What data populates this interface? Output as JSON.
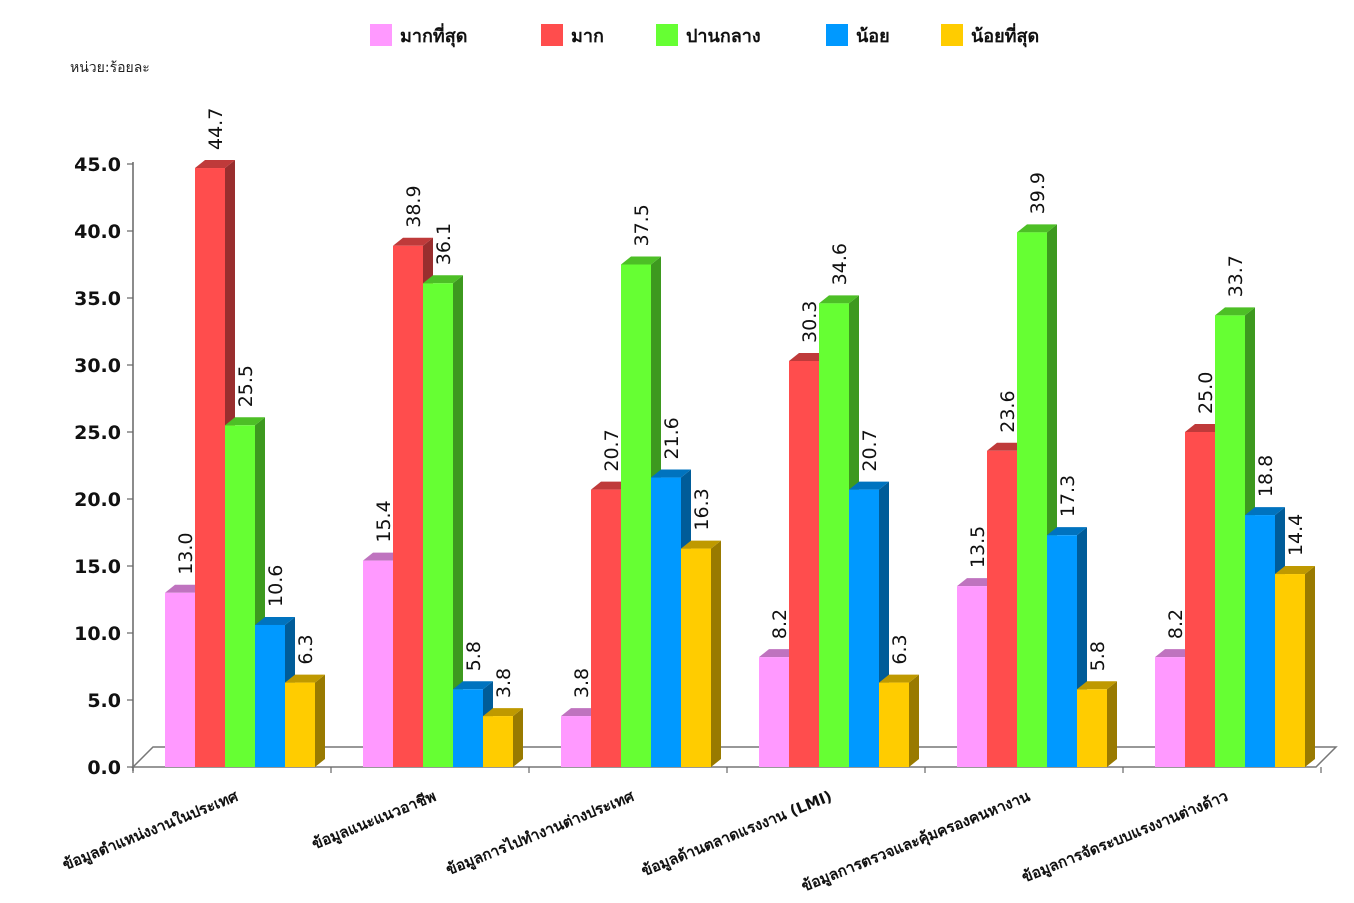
{
  "chart_data": {
    "type": "bar",
    "unit_label": "หน่วย:ร้อยละ",
    "categories": [
      "ข้อมูลตำแหน่งงานในประเทศ",
      "ข้อมูลแนะแนวอาชีพ",
      "ข้อมูลการไปทำงานต่างประเทศ",
      "ข้อมูลด้านตลาดแรงงาน (LMI)",
      "ข้อมูลการตรวจและคุ้มครองคนหางาน",
      "ข้อมูลการจัดระบบแรงงานต่างด้าว"
    ],
    "series": [
      {
        "name": "มากที่สุด",
        "color": "#FF99FF",
        "values": [
          13.0,
          15.4,
          3.8,
          8.2,
          13.5,
          8.2
        ]
      },
      {
        "name": "มาก",
        "color": "#FF4D4D",
        "values": [
          44.7,
          38.9,
          20.7,
          30.3,
          23.6,
          25.0
        ]
      },
      {
        "name": "ปานกลาง",
        "color": "#66FF33",
        "values": [
          25.5,
          36.1,
          37.5,
          34.6,
          39.9,
          33.7
        ]
      },
      {
        "name": "น้อย",
        "color": "#0099FF",
        "values": [
          10.6,
          5.8,
          21.6,
          20.7,
          17.3,
          18.8
        ]
      },
      {
        "name": "น้อยที่สุด",
        "color": "#FFCC00",
        "values": [
          6.3,
          3.8,
          16.3,
          6.3,
          5.8,
          14.4
        ]
      }
    ],
    "yticks": [
      "0.0",
      "5.0",
      "10.0",
      "15.0",
      "20.0",
      "25.0",
      "30.0",
      "35.0",
      "40.0",
      "45.0"
    ],
    "ylim": [
      0,
      45
    ],
    "legend_position": "top",
    "grid": false
  }
}
